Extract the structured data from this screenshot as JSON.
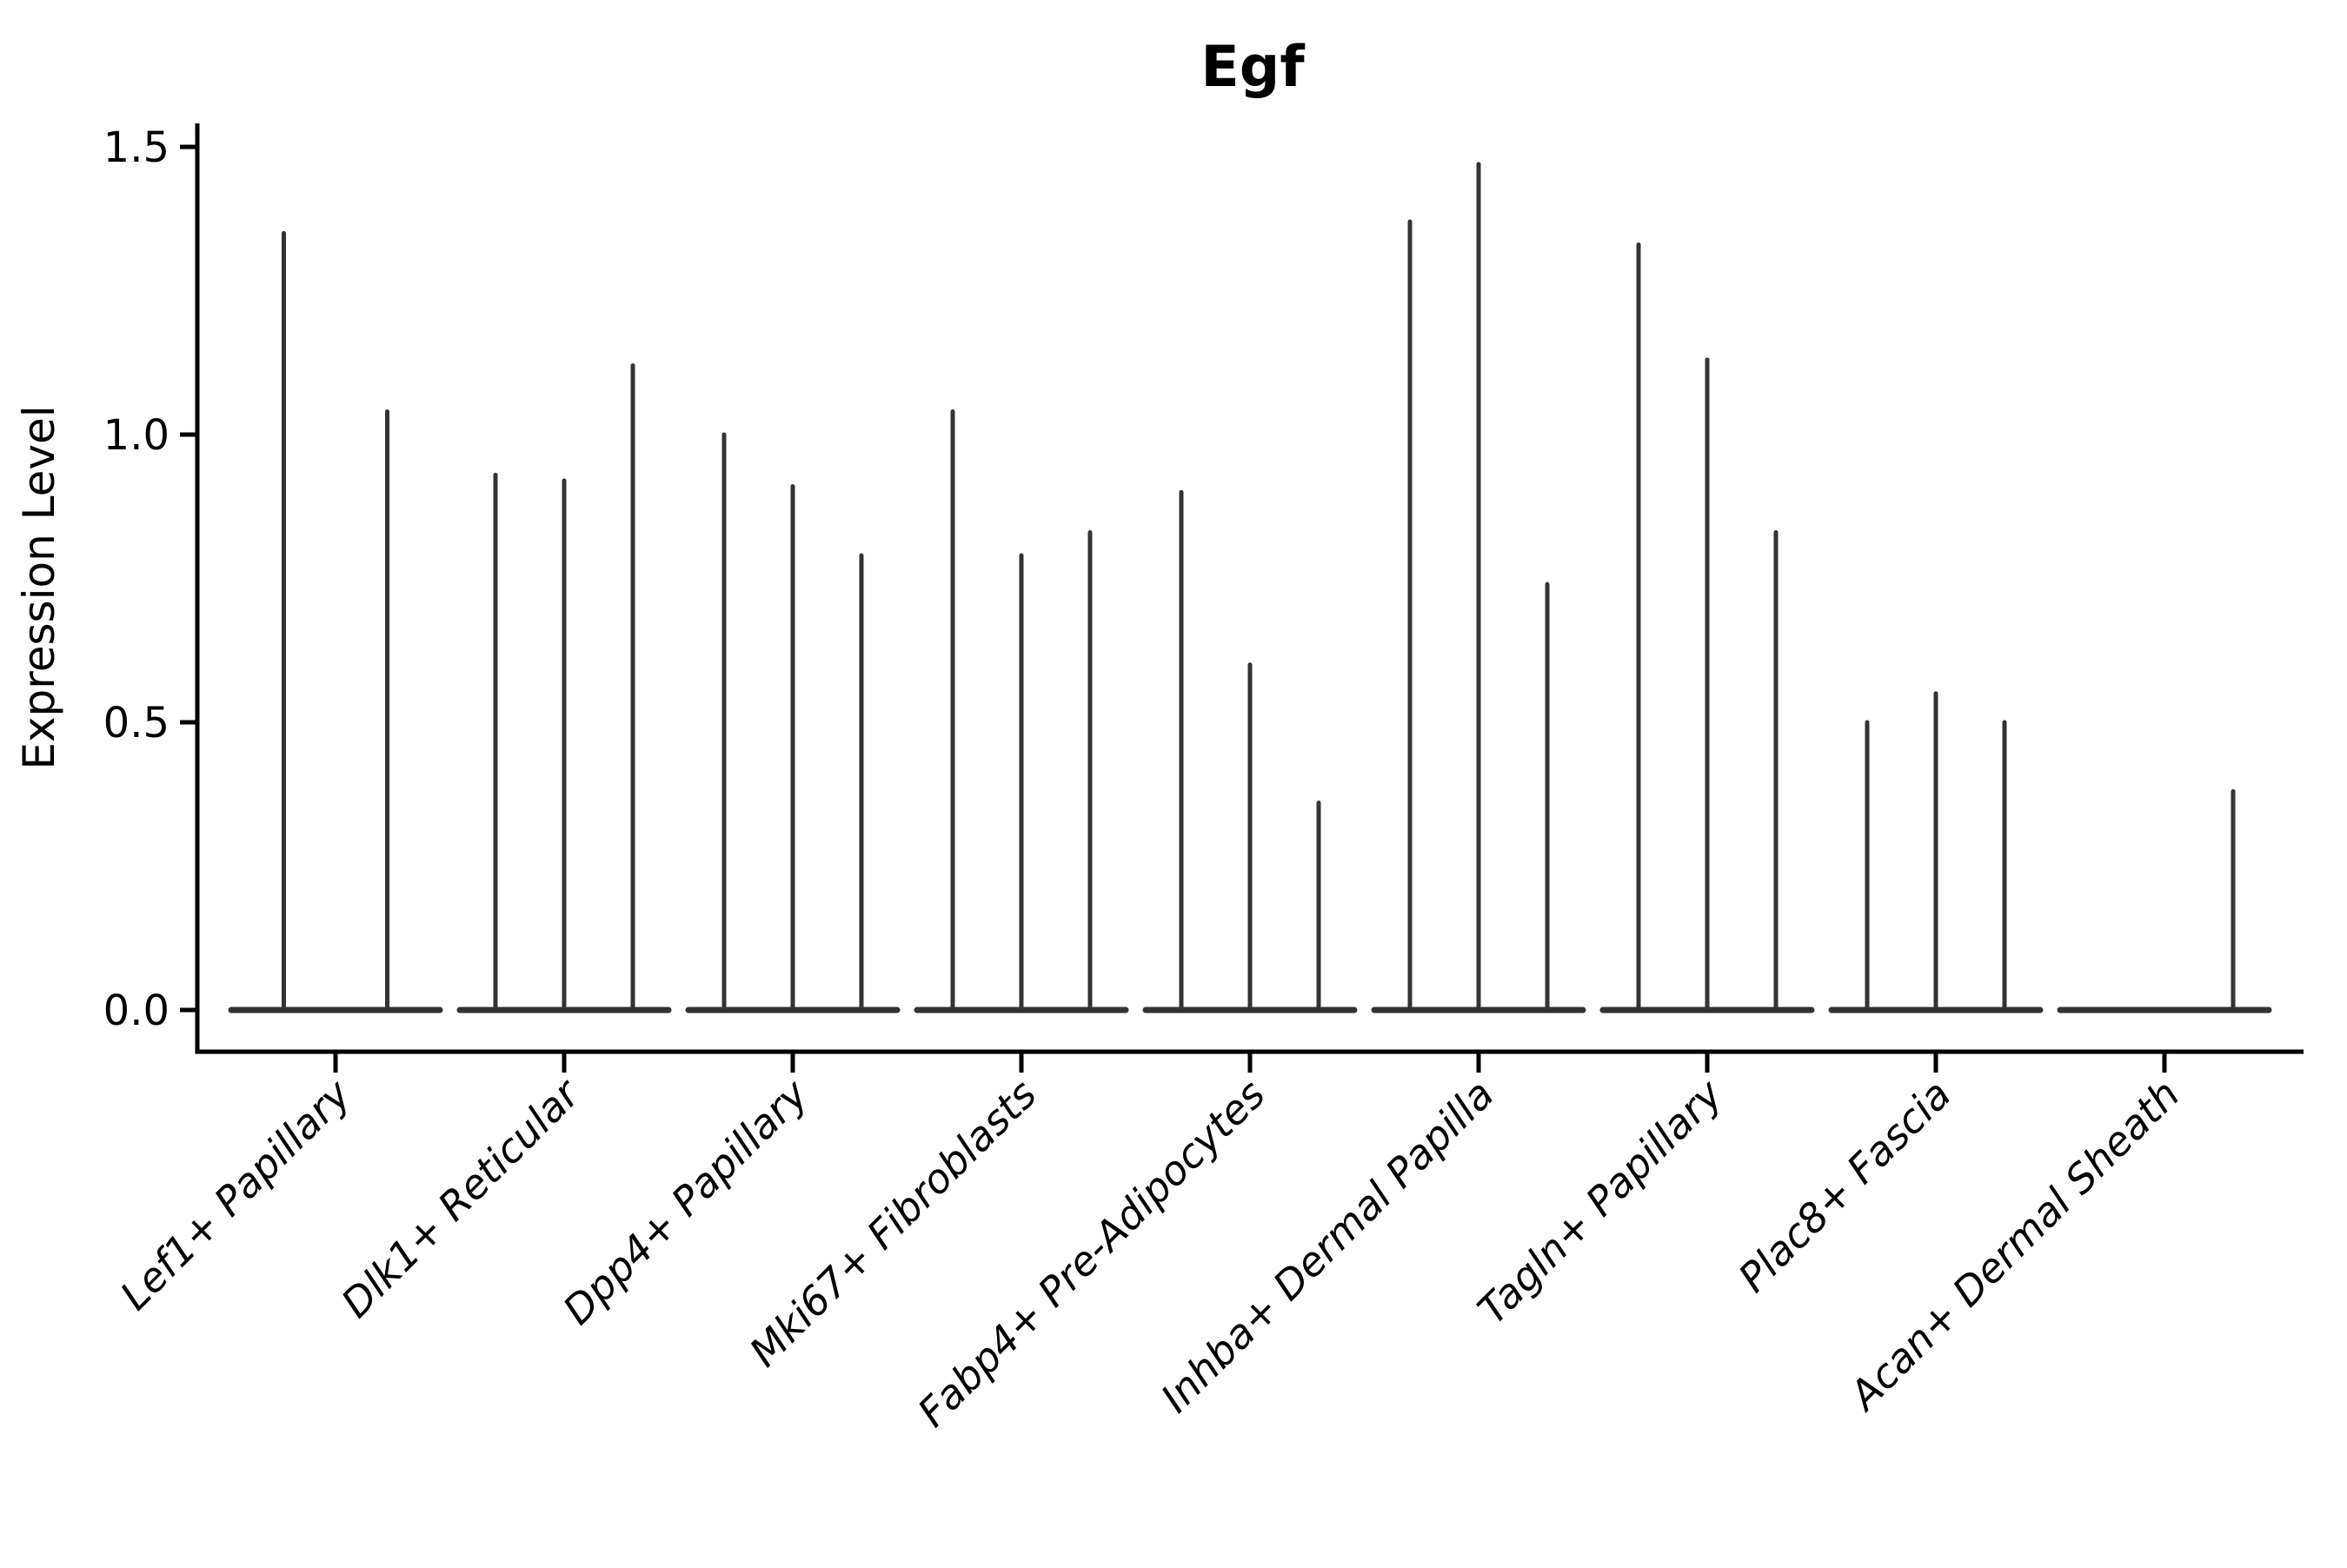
{
  "colors": {
    "background": "#ffffff",
    "axis": "#000000",
    "violin": "#333333",
    "text": "#000000"
  },
  "chart_data": {
    "type": "violin",
    "title": "Egf",
    "xlabel": "",
    "ylabel": "Expression Level",
    "ylim": [
      0,
      1.5
    ],
    "ytick_values": [
      0.0,
      0.5,
      1.0,
      1.5
    ],
    "ytick_labels": [
      "0.0",
      "0.5",
      "1.0",
      "1.5"
    ],
    "grid": "off",
    "legend": "none",
    "categories": [
      "Lef1+ Papillary",
      "Dlk1+ Reticular",
      "Dpp4+ Papillary",
      "Mki67+ Fibroblasts",
      "Fabp4+ Pre-Adipocytes",
      "Inhba+ Dermal Papilla",
      "Tagln+ Papillary",
      "Plac8+ Fascia",
      "Acan+ Dermal Sheath"
    ],
    "groups": [
      {
        "label": "Lef1+ Papillary",
        "violin_max": [
          1.35,
          1.04
        ]
      },
      {
        "label": "Dlk1+ Reticular",
        "violin_max": [
          0.93,
          0.92,
          1.12
        ]
      },
      {
        "label": "Dpp4+ Papillary",
        "violin_max": [
          1.0,
          0.91,
          0.79
        ]
      },
      {
        "label": "Mki67+ Fibroblasts",
        "violin_max": [
          1.04,
          0.79,
          0.83
        ]
      },
      {
        "label": "Fabp4+ Pre-Adipocytes",
        "violin_max": [
          0.9,
          0.6,
          0.36
        ]
      },
      {
        "label": "Inhba+ Dermal Papilla",
        "violin_max": [
          1.37,
          1.47,
          0.74
        ]
      },
      {
        "label": "Tagln+ Papillary",
        "violin_max": [
          1.33,
          1.13,
          0.83
        ]
      },
      {
        "label": "Plac8+ Fascia",
        "violin_max": [
          0.5,
          0.55,
          0.5
        ]
      },
      {
        "label": "Acan+ Dermal Sheath",
        "violin_max": [
          0.0,
          0.0,
          0.38
        ]
      }
    ],
    "note": "Each group shows thin collapsed violins: a flat baseline at 0 with a vertical density spike reaching the group's max expression value."
  }
}
